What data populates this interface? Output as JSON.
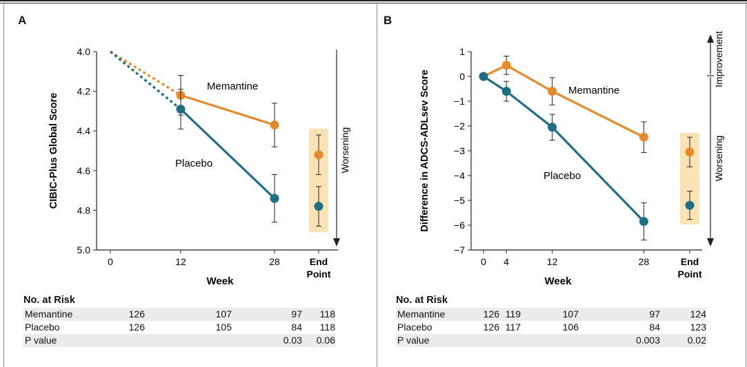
{
  "colors": {
    "memantine": "#e38b2c",
    "placebo": "#1f6e86",
    "highlight": "#fbe3b5"
  },
  "chart_data": [
    {
      "panel_label": "A",
      "type": "line",
      "xlabel": "Week",
      "ylabel": "CIBIC-Plus Global Score",
      "x_tick_labels": [
        "0",
        "12",
        "28"
      ],
      "endpoint_label": [
        "End",
        "Point"
      ],
      "y_ticks": [
        "4.0",
        "4.2",
        "4.4",
        "4.6",
        "4.8",
        "5.0"
      ],
      "ylim": [
        4.0,
        5.0
      ],
      "y_inverted": true,
      "arrow_labels": {
        "down": "Worsening"
      },
      "series": [
        {
          "name": "Memantine",
          "x": [
            0,
            12,
            28
          ],
          "y": [
            4.0,
            4.22,
            4.37
          ],
          "err": [
            null,
            0.1,
            0.11
          ],
          "dashed_until": 12,
          "endpoint": 4.52,
          "endpoint_err": 0.1
        },
        {
          "name": "Placebo",
          "x": [
            0,
            12,
            28
          ],
          "y": [
            4.0,
            4.29,
            4.74
          ],
          "err": [
            null,
            0.1,
            0.12
          ],
          "dashed_until": 12,
          "endpoint": 4.78,
          "endpoint_err": 0.1
        }
      ],
      "risk_table": {
        "title": "No. at Risk",
        "rows": [
          {
            "label": "Memantine",
            "values": [
              "126",
              "107",
              "97",
              "118"
            ]
          },
          {
            "label": "Placebo",
            "values": [
              "126",
              "105",
              "84",
              "118"
            ]
          },
          {
            "label": "P value",
            "values": [
              "",
              "",
              "0.03",
              "0.06"
            ]
          }
        ]
      }
    },
    {
      "panel_label": "B",
      "type": "line",
      "xlabel": "Week",
      "ylabel": "Difference in ADCS-ADLsev Score",
      "x_tick_labels": [
        "0",
        "4",
        "12",
        "28"
      ],
      "endpoint_label": [
        "End",
        "Point"
      ],
      "y_ticks": [
        "1",
        "0",
        "−1",
        "−2",
        "−3",
        "−4",
        "−5",
        "−6",
        "−7"
      ],
      "ylim": [
        -7,
        1
      ],
      "arrow_labels": {
        "up": "Improvement",
        "down": "Worsening"
      },
      "series": [
        {
          "name": "Memantine",
          "x": [
            0,
            4,
            12,
            28
          ],
          "y": [
            0,
            0.45,
            -0.6,
            -2.45
          ],
          "err": [
            null,
            0.37,
            0.55,
            0.62
          ],
          "endpoint": -3.05,
          "endpoint_err": 0.6
        },
        {
          "name": "Placebo",
          "x": [
            0,
            4,
            12,
            28
          ],
          "y": [
            0,
            -0.6,
            -2.05,
            -5.85
          ],
          "err": [
            null,
            0.4,
            0.52,
            0.75
          ],
          "endpoint": -5.2,
          "endpoint_err": 0.57
        }
      ],
      "risk_table": {
        "title": "No. at Risk",
        "rows": [
          {
            "label": "Memantine",
            "values": [
              "126",
              "119",
              "107",
              "97",
              "124"
            ]
          },
          {
            "label": "Placebo",
            "values": [
              "126",
              "117",
              "106",
              "84",
              "123"
            ]
          },
          {
            "label": "P value",
            "values": [
              "",
              "",
              "",
              "0.003",
              "0.02"
            ]
          }
        ]
      }
    }
  ]
}
